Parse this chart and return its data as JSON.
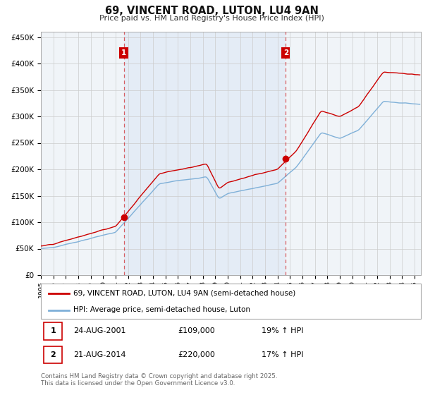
{
  "title": "69, VINCENT ROAD, LUTON, LU4 9AN",
  "subtitle": "Price paid vs. HM Land Registry's House Price Index (HPI)",
  "legend_label_red": "69, VINCENT ROAD, LUTON, LU4 9AN (semi-detached house)",
  "legend_label_blue": "HPI: Average price, semi-detached house, Luton",
  "annotation1_date": "24-AUG-2001",
  "annotation1_price": "£109,000",
  "annotation1_hpi": "19% ↑ HPI",
  "annotation2_date": "21-AUG-2014",
  "annotation2_price": "£220,000",
  "annotation2_hpi": "17% ↑ HPI",
  "copyright": "Contains HM Land Registry data © Crown copyright and database right 2025.\nThis data is licensed under the Open Government Licence v3.0.",
  "ylim": [
    0,
    460000
  ],
  "yticks": [
    0,
    50000,
    100000,
    150000,
    200000,
    250000,
    300000,
    350000,
    400000,
    450000
  ],
  "background_color": "#ffffff",
  "chart_bg_color": "#f0f4f8",
  "shade_color": "#dce8f5",
  "grid_color": "#cccccc",
  "red_color": "#cc0000",
  "blue_color": "#7fb0d8",
  "vline_color": "#cc0000",
  "sale1_year": 2001.65,
  "sale1_price": 109000,
  "sale2_year": 2014.65,
  "sale2_price": 220000
}
